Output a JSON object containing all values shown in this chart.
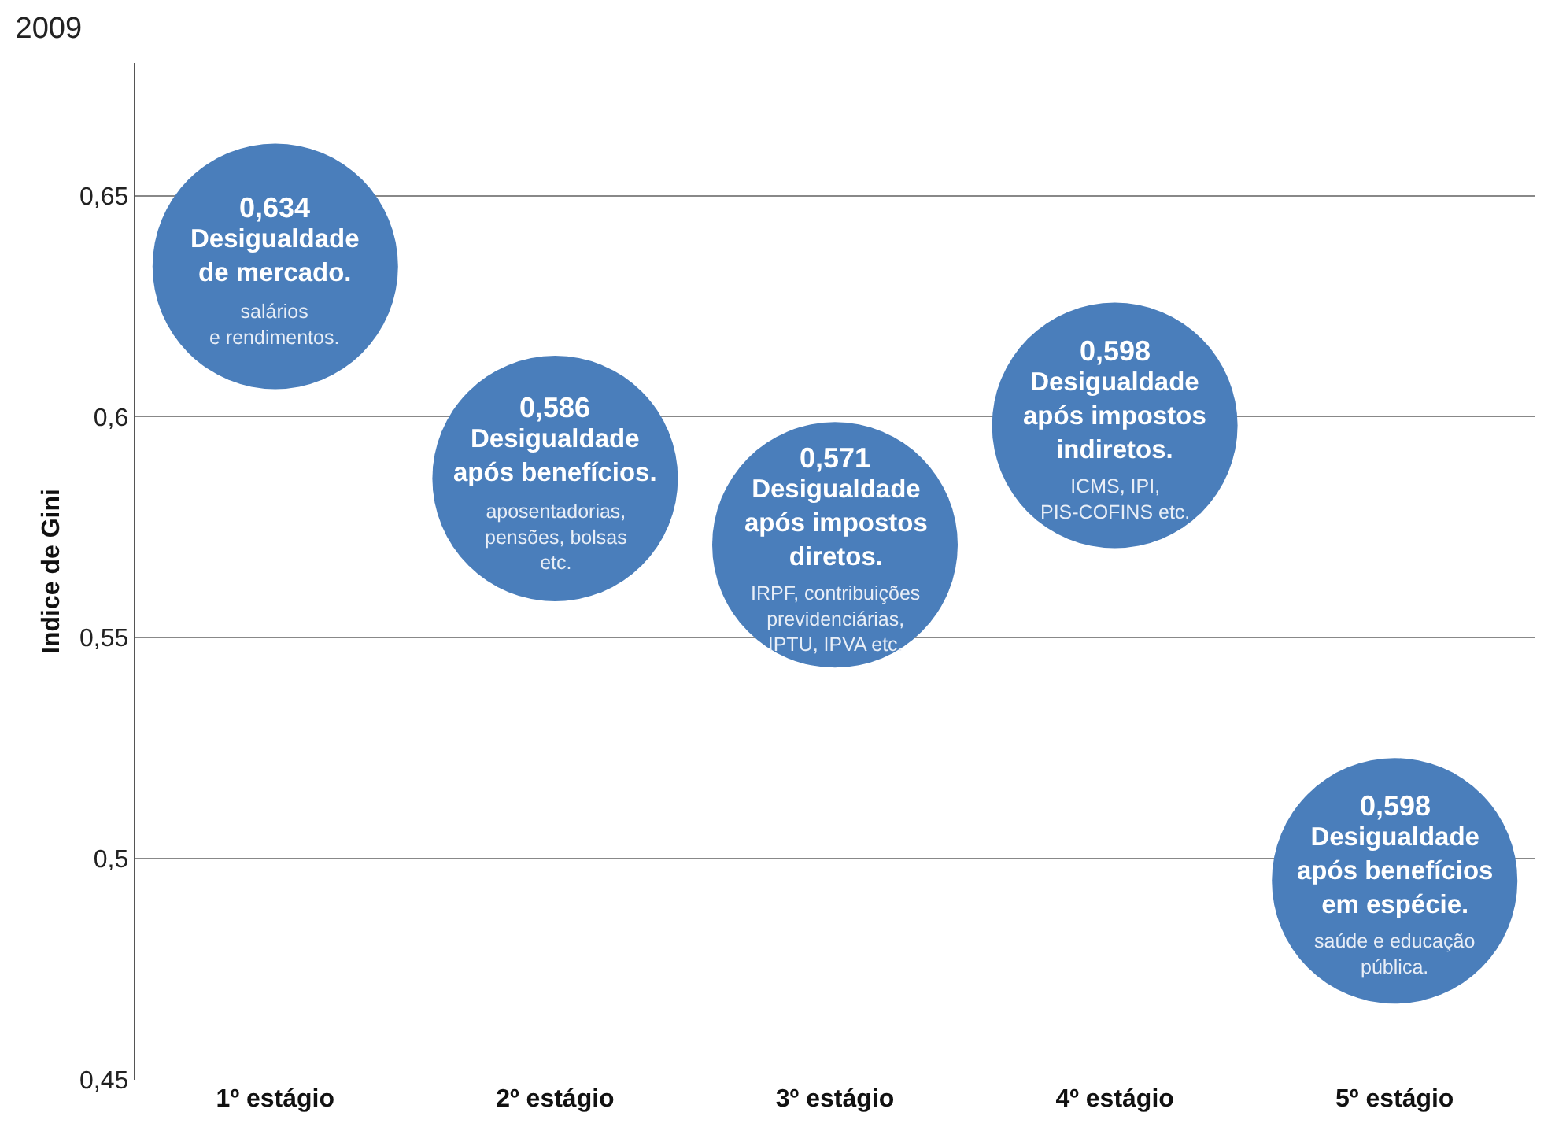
{
  "chart_data": {
    "type": "bubble",
    "title": "2009",
    "ylabel": "Indice de Gini",
    "categories": [
      "1º estágio",
      "2º estágio",
      "3º estágio",
      "4º estágio",
      "5º estágio"
    ],
    "values": [
      0.634,
      0.586,
      0.571,
      0.598,
      0.495
    ],
    "sizes": [
      1,
      1,
      1,
      1,
      1
    ],
    "color": "#4a7ebb",
    "annotations": [
      {
        "text": "0,634",
        "x": "1º estágio",
        "y": 0.634
      },
      {
        "text": "Desigualdade\nde mercado.",
        "x": "1º estágio",
        "y": 0.634
      },
      {
        "text": "salários\ne rendimentos.",
        "x": "1º estágio",
        "y": 0.634
      },
      {
        "text": "0,586",
        "x": "2º estágio",
        "y": 0.586
      },
      {
        "text": "Desigualdade\napós benefícios.",
        "x": "2º estágio",
        "y": 0.586
      },
      {
        "text": "aposentadorias,\npensões, bolsas\netc.",
        "x": "2º estágio",
        "y": 0.586
      },
      {
        "text": "0,571",
        "x": "3º estágio",
        "y": 0.571
      },
      {
        "text": "Desigualdade\napós impostos\ndiretos.",
        "x": "3º estágio",
        "y": 0.571
      },
      {
        "text": "IRPF, contribuições\nprevidenciárias,\nIPTU, IPVA etc.",
        "x": "3º estágio",
        "y": 0.571
      },
      {
        "text": "0,598",
        "x": "4º estágio",
        "y": 0.598
      },
      {
        "text": "Desigualdade\napós impostos\nindiretos.",
        "x": "4º estágio",
        "y": 0.598
      },
      {
        "text": "ICMS, IPI,\nPIS-COFINS etc.",
        "x": "4º estágio",
        "y": 0.598
      },
      {
        "text": "0,598",
        "x": "5º estágio",
        "y": 0.495
      },
      {
        "text": "Desigualdade\napós benefícios\nem espécie.",
        "x": "5º estágio",
        "y": 0.495
      },
      {
        "text": "saúde e educação\npública.",
        "x": "5º estágio",
        "y": 0.495
      }
    ],
    "ylim": [
      0.45,
      0.68
    ],
    "yticks": [
      {
        "value": 0.45,
        "label": "0,45"
      },
      {
        "value": 0.5,
        "label": "0,5"
      },
      {
        "value": 0.55,
        "label": "0,55"
      },
      {
        "value": 0.6,
        "label": "0,6"
      },
      {
        "value": 0.65,
        "label": "0,65"
      }
    ],
    "grid": "y",
    "legend": false,
    "marker": "circle"
  }
}
